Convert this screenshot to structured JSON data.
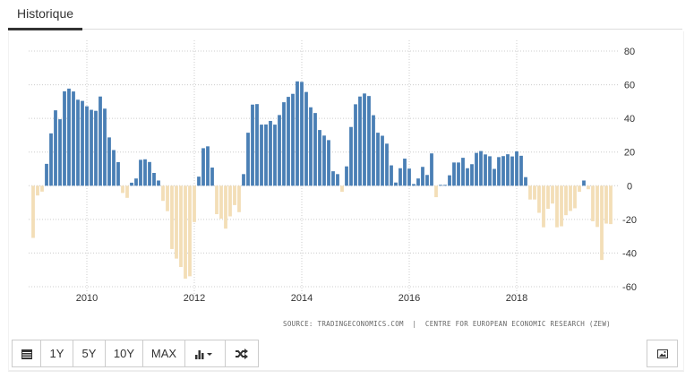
{
  "tab": {
    "label": "Historique"
  },
  "source": "SOURCE: TRADINGECONOMICS.COM  |  CENTRE FOR EUROPEAN ECONOMIC RESEARCH (ZEW)",
  "toolbar": {
    "calendar_icon": "calendar-icon",
    "buttons": [
      "1Y",
      "5Y",
      "10Y",
      "MAX"
    ],
    "chart_type_icon": "bar-chart-dropdown-icon",
    "compare_icon": "shuffle-icon",
    "image_icon": "image-icon"
  },
  "colors": {
    "positive": "#4a7fb5",
    "negative": "#f3deb7",
    "grid": "#cccccc"
  },
  "chart_data": {
    "type": "bar",
    "title": "",
    "xlabel": "",
    "ylabel": "",
    "start": "2009-01",
    "frequency": "monthly",
    "ylim": [
      -60,
      80
    ],
    "yticks": [
      80,
      60,
      40,
      20,
      0,
      -20,
      -40,
      -60
    ],
    "xticks": [
      "2010",
      "2012",
      "2014",
      "2016",
      "2018"
    ],
    "grid": true,
    "values": [
      -31.0,
      -5.8,
      -3.5,
      13.0,
      31.1,
      44.8,
      39.5,
      56.1,
      57.7,
      56.0,
      51.1,
      50.4,
      47.2,
      45.1,
      44.5,
      53.0,
      45.8,
      28.7,
      21.2,
      14.0,
      -4.3,
      -7.2,
      1.8,
      4.3,
      15.4,
      15.7,
      14.1,
      7.6,
      3.1,
      -9.0,
      -15.1,
      -37.6,
      -43.3,
      -48.3,
      -55.2,
      -53.8,
      -21.6,
      5.4,
      22.3,
      23.4,
      10.8,
      -16.9,
      -19.6,
      -25.5,
      -18.2,
      -11.5,
      -15.7,
      6.9,
      31.5,
      48.2,
      48.5,
      36.3,
      36.4,
      38.5,
      36.3,
      42.0,
      49.6,
      52.8,
      54.6,
      62.0,
      61.7,
      55.7,
      46.6,
      43.2,
      33.1,
      29.8,
      27.1,
      8.6,
      6.9,
      -3.6,
      11.5,
      34.9,
      48.4,
      53.0,
      54.8,
      53.3,
      41.9,
      31.5,
      29.7,
      25.0,
      12.1,
      1.9,
      10.4,
      16.1,
      10.2,
      1.0,
      4.3,
      11.2,
      6.4,
      19.2,
      -6.8,
      0.5,
      0.5,
      6.2,
      13.8,
      13.8,
      16.6,
      10.4,
      12.8,
      19.5,
      20.6,
      18.6,
      17.5,
      10.0,
      17.0,
      17.6,
      18.7,
      17.4,
      20.4,
      17.8,
      5.1,
      -8.2,
      -8.2,
      -16.1,
      -24.7,
      -13.7,
      -10.6,
      -24.7,
      -24.1,
      -17.5,
      -15.0,
      -13.4,
      -3.6,
      3.1,
      -2.1,
      -21.1,
      -24.5,
      -44.1,
      -22.5,
      -22.8
    ]
  }
}
